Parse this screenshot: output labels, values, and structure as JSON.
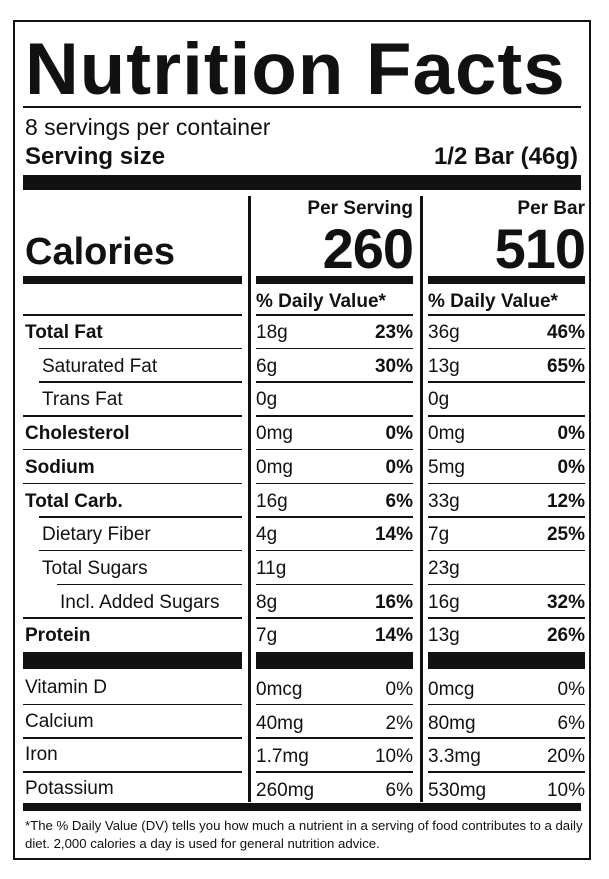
{
  "title": "Nutrition Facts",
  "servings": "8 servings per container",
  "serving_size_label": "Serving size",
  "serving_size_value": "1/2 Bar (46g)",
  "calories_label": "Calories",
  "per_serving_label": "Per Serving",
  "per_bar_label": "Per Bar",
  "calories_per_serving": "260",
  "calories_per_bar": "510",
  "daily_value_header": "% Daily Value*",
  "nutrients": [
    {
      "name": "Total Fat",
      "bold": true,
      "indent": 0,
      "serving_amt": "18g",
      "serving_pct": "23%",
      "bar_amt": "36g",
      "bar_pct": "46%"
    },
    {
      "name": "Saturated Fat",
      "bold": false,
      "indent": 1,
      "serving_amt": "6g",
      "serving_pct": "30%",
      "bar_amt": "13g",
      "bar_pct": "65%"
    },
    {
      "name": "Trans Fat",
      "bold": false,
      "indent": 1,
      "serving_amt": "0g",
      "serving_pct": "",
      "bar_amt": "0g",
      "bar_pct": ""
    },
    {
      "name": "Cholesterol",
      "bold": true,
      "indent": 0,
      "serving_amt": "0mg",
      "serving_pct": "0%",
      "bar_amt": "0mg",
      "bar_pct": "0%"
    },
    {
      "name": "Sodium",
      "bold": true,
      "indent": 0,
      "serving_amt": "0mg",
      "serving_pct": "0%",
      "bar_amt": "5mg",
      "bar_pct": "0%"
    },
    {
      "name": "Total Carb.",
      "bold": true,
      "indent": 0,
      "serving_amt": "16g",
      "serving_pct": "6%",
      "bar_amt": "33g",
      "bar_pct": "12%"
    },
    {
      "name": "Dietary Fiber",
      "bold": false,
      "indent": 1,
      "serving_amt": "4g",
      "serving_pct": "14%",
      "bar_amt": "7g",
      "bar_pct": "25%"
    },
    {
      "name": "Total Sugars",
      "bold": false,
      "indent": 1,
      "serving_amt": "11g",
      "serving_pct": "",
      "bar_amt": "23g",
      "bar_pct": ""
    },
    {
      "name": "Incl. Added Sugars",
      "bold": false,
      "indent": 2,
      "serving_amt": "8g",
      "serving_pct": "16%",
      "bar_amt": "16g",
      "bar_pct": "32%"
    },
    {
      "name": "Protein",
      "bold": true,
      "indent": 0,
      "serving_amt": "7g",
      "serving_pct": "14%",
      "bar_amt": "13g",
      "bar_pct": "26%"
    }
  ],
  "micronutrients": [
    {
      "name": "Vitamin D",
      "serving_amt": "0mcg",
      "serving_pct": "0%",
      "bar_amt": "0mcg",
      "bar_pct": "0%"
    },
    {
      "name": "Calcium",
      "serving_amt": "40mg",
      "serving_pct": "2%",
      "bar_amt": "80mg",
      "bar_pct": "6%"
    },
    {
      "name": "Iron",
      "serving_amt": "1.7mg",
      "serving_pct": "10%",
      "bar_amt": "3.3mg",
      "bar_pct": "20%"
    },
    {
      "name": "Potassium",
      "serving_amt": "260mg",
      "serving_pct": "6%",
      "bar_amt": "530mg",
      "bar_pct": "10%"
    }
  ],
  "footnote": "*The % Daily Value (DV) tells you how much a nutrient in a serving of food contributes to a daily diet. 2,000 calories a day is used for general nutrition advice."
}
